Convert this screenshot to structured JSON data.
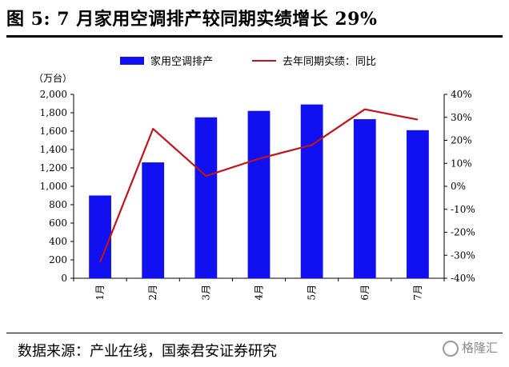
{
  "header": {
    "title": "图 5:  7 月家用空调排产较同期实绩增长 29%"
  },
  "footer": {
    "source": "数据来源：产业在线，国泰君安证券研究",
    "watermark": "格隆汇"
  },
  "colors": {
    "bar": "#1010f0",
    "line": "#c0141c"
  },
  "chart_data": {
    "type": "bar",
    "categories": [
      "1月",
      "2月",
      "3月",
      "4月",
      "5月",
      "6月",
      "7月"
    ],
    "series": [
      {
        "name": "家用空调排产",
        "type": "bar",
        "axis": "left",
        "values": [
          900,
          1260,
          1750,
          1820,
          1890,
          1730,
          1610
        ]
      },
      {
        "name": "去年同期实绩：同比",
        "type": "line",
        "axis": "right",
        "values": [
          -33,
          25,
          4.5,
          12,
          18,
          33.5,
          29
        ]
      }
    ],
    "ylabel": "（万台）",
    "ylim": [
      0,
      2000
    ],
    "yticks": [
      "0",
      "200",
      "400",
      "600",
      "800",
      "1,000",
      "1,200",
      "1,400",
      "1,600",
      "1,800",
      "2,000"
    ],
    "y2lim": [
      -40,
      40
    ],
    "y2ticks": [
      "-40%",
      "-30%",
      "-20%",
      "-10%",
      "0%",
      "10%",
      "20%",
      "30%",
      "40%"
    ],
    "legend_position": "top",
    "grid": false
  }
}
